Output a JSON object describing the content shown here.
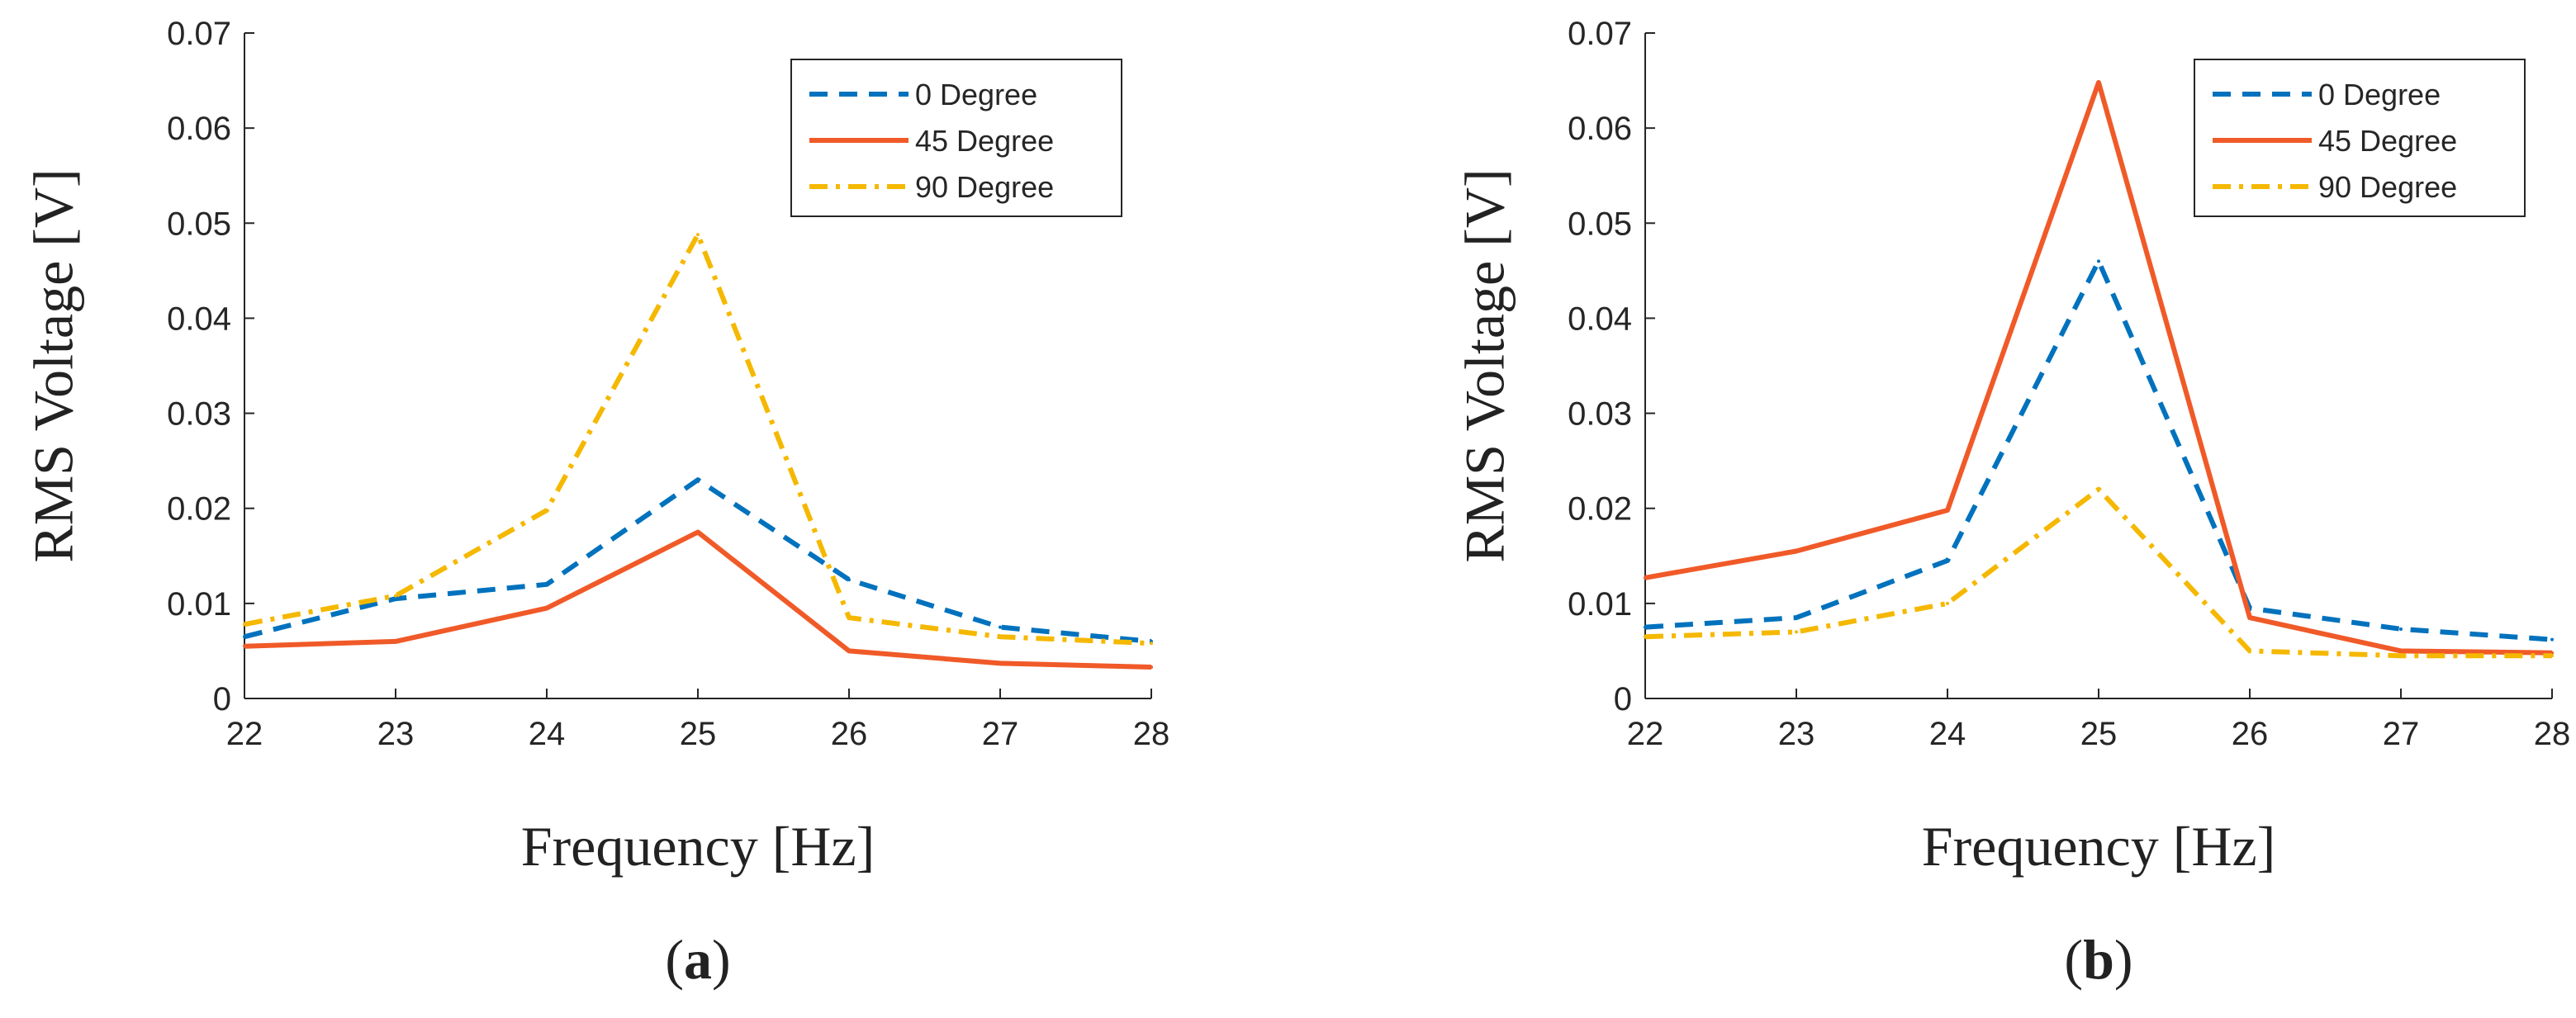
{
  "chart_data": [
    {
      "type": "line",
      "panel_label": "a",
      "xlabel": "Frequency [Hz]",
      "ylabel": "RMS Voltage [V]",
      "x": [
        22,
        23,
        24,
        25,
        26,
        27,
        28
      ],
      "xlim": [
        22,
        28
      ],
      "ylim": [
        0,
        0.07
      ],
      "xticks": [
        "22",
        "23",
        "24",
        "25",
        "26",
        "27",
        "28"
      ],
      "yticks": [
        "0",
        "0.01",
        "0.02",
        "0.03",
        "0.04",
        "0.05",
        "0.06",
        "0.07"
      ],
      "grid": false,
      "legend_position": "top-right",
      "series": [
        {
          "name": "0 Degree",
          "color": "#0072BD",
          "dash": "dashed",
          "values": [
            0.0065,
            0.0105,
            0.012,
            0.023,
            0.0125,
            0.0075,
            0.006
          ]
        },
        {
          "name": "45 Degree",
          "color": "#F05A28",
          "dash": "solid",
          "values": [
            0.0055,
            0.006,
            0.0095,
            0.0175,
            0.005,
            0.0037,
            0.0033
          ]
        },
        {
          "name": "90 Degree",
          "color": "#F5B800",
          "dash": "dashdot",
          "values": [
            0.0078,
            0.0108,
            0.0198,
            0.0488,
            0.0085,
            0.0065,
            0.0058
          ]
        }
      ]
    },
    {
      "type": "line",
      "panel_label": "b",
      "xlabel": "Frequency [Hz]",
      "ylabel": "RMS Voltage [V]",
      "x": [
        22,
        23,
        24,
        25,
        26,
        27,
        28
      ],
      "xlim": [
        22,
        28
      ],
      "ylim": [
        0,
        0.07
      ],
      "xticks": [
        "22",
        "23",
        "24",
        "25",
        "26",
        "27",
        "28"
      ],
      "yticks": [
        "0",
        "0.01",
        "0.02",
        "0.03",
        "0.04",
        "0.05",
        "0.06",
        "0.07"
      ],
      "grid": false,
      "legend_position": "top-right",
      "series": [
        {
          "name": "0 Degree",
          "color": "#0072BD",
          "dash": "dashed",
          "values": [
            0.0075,
            0.0085,
            0.0145,
            0.046,
            0.0095,
            0.0073,
            0.0062
          ]
        },
        {
          "name": "45 Degree",
          "color": "#F05A28",
          "dash": "solid",
          "values": [
            0.0127,
            0.0155,
            0.0198,
            0.0648,
            0.0085,
            0.005,
            0.0048
          ]
        },
        {
          "name": "90 Degree",
          "color": "#F5B800",
          "dash": "dashdot",
          "values": [
            0.0065,
            0.007,
            0.01,
            0.022,
            0.005,
            0.0045,
            0.0045
          ]
        }
      ]
    }
  ]
}
